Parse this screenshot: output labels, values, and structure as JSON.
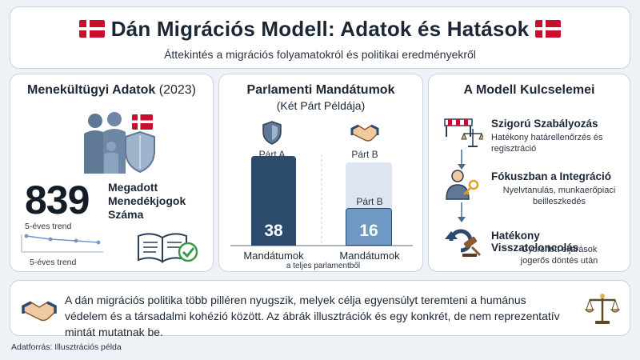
{
  "header": {
    "title": "Dán Migrációs Modell: Adatok és Hatások",
    "subtitle": "Áttekintés a migrációs folyamatokról és politikai eredményekről"
  },
  "refugee": {
    "title_main": "Menekültügyi Adatok",
    "title_year": "(2023)",
    "number": "839",
    "number_label": "Megadott Menedékjogok Száma",
    "trend_label_top": "5-éves trend",
    "trend_label_bottom": "5-éves trend"
  },
  "parliament": {
    "title": "Parlamenti Mandátumok",
    "subtitle": "(Két Párt Példája)",
    "parties": [
      {
        "name": "Párt A",
        "seats": "38",
        "seats_num": 38,
        "axis_label": "Mandátumok",
        "inner_label": ""
      },
      {
        "name": "Párt B",
        "seats": "16",
        "seats_num": 16,
        "axis_label": "Mandátumok",
        "inner_label": "Párt B"
      }
    ],
    "note": "a teljes parlamentből"
  },
  "model": {
    "title": "A Modell Kulcselemei",
    "items": [
      {
        "title": "Szigorú Szabályozás",
        "desc1": "Hatékony határellenőrzés és",
        "desc2": "regisztráció"
      },
      {
        "title": "Fókuszban a Integráció",
        "desc1": "Nyelvtanulás, munkaerőpiaci",
        "desc2": "beilleszkedés"
      },
      {
        "title": "Hatékony Visszatoloncolás",
        "desc1": "Gyorsított eljárások",
        "desc2": "jogerős döntés után"
      }
    ]
  },
  "footer": {
    "text": "A dán migrációs politika több pilléren nyugszik, melyek célja egyensúlyt teremteni a humánus védelem és a társadalmi kohézió között. Az ábrák illusztrációk és egy konkrét, de nem reprezentatív mintát mutatnak be."
  },
  "source": "Adatforrás: Illusztrációs példa",
  "colors": {
    "danish_red": "#c8102e",
    "navy": "#2c4a6b",
    "steel_blue": "#6f98c2",
    "pale_blue": "#dde6f0"
  }
}
